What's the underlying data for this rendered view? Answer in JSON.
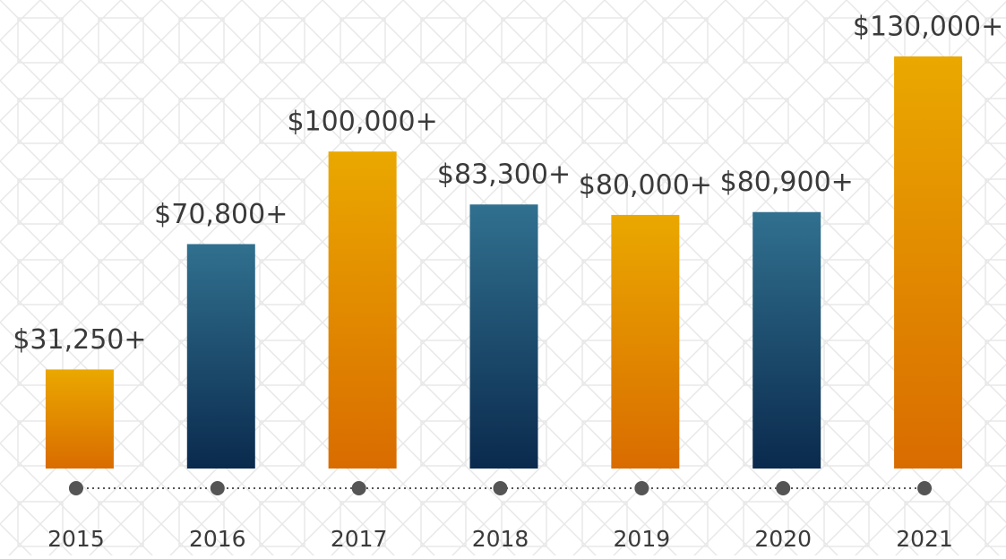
{
  "chart_data": {
    "type": "bar",
    "categories": [
      "2015",
      "2016",
      "2017",
      "2018",
      "2019",
      "2020",
      "2021"
    ],
    "values": [
      31250,
      70800,
      100000,
      83300,
      80000,
      80900,
      130000
    ],
    "value_labels": [
      "$31,250+",
      "$70,800+",
      "$100,000+",
      "$83,300+",
      "$80,000+",
      "$80,900+",
      "$130,000+"
    ],
    "colors": [
      "#eaa800",
      "#31708f",
      "#eaa800",
      "#31708f",
      "#eaa800",
      "#31708f",
      "#eaa800"
    ],
    "ylim": [
      0,
      130000
    ]
  }
}
